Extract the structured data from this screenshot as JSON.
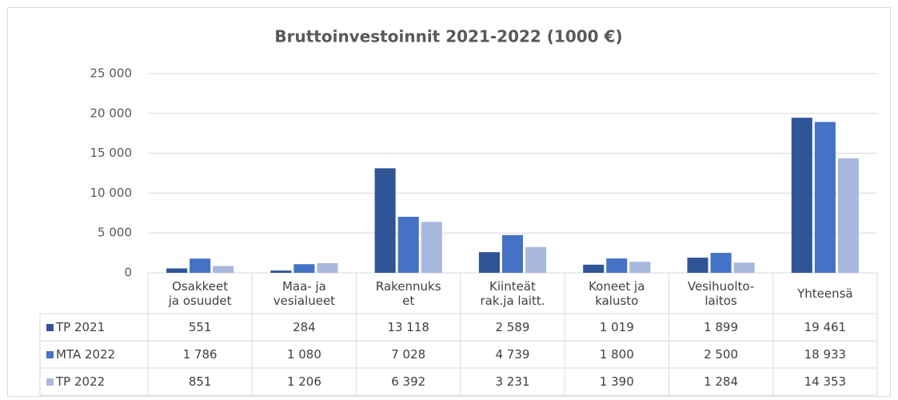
{
  "chart_data": {
    "type": "bar",
    "title": "Bruttoinvestoinnit 2021-2022 (1000 €)",
    "categories": [
      "Osakkeet\nja osuudet",
      "Maa- ja\nvesialueet",
      "Rakennuks\net",
      "Kiinteät\nrak.ja laitt.",
      "Koneet ja\nkalusto",
      "Vesihuolto-\nlaitos",
      "Yhteensä"
    ],
    "series": [
      {
        "name": "TP 2021",
        "color": "#2f5597",
        "values": [
          551,
          284,
          13118,
          2589,
          1019,
          1899,
          19461
        ],
        "value_labels": [
          "551",
          "284",
          "13 118",
          "2 589",
          "1 019",
          "1 899",
          "19 461"
        ]
      },
      {
        "name": "MTA 2022",
        "color": "#4472c4",
        "values": [
          1786,
          1080,
          7028,
          4739,
          1800,
          2500,
          18933
        ],
        "value_labels": [
          "1 786",
          "1 080",
          "7 028",
          "4 739",
          "1 800",
          "2 500",
          "18 933"
        ]
      },
      {
        "name": "TP 2022",
        "color": "#a9b8de",
        "values": [
          851,
          1206,
          6392,
          3231,
          1390,
          1284,
          14353
        ],
        "value_labels": [
          "851",
          "1 206",
          "6 392",
          "3 231",
          "1 390",
          "1 284",
          "14 353"
        ]
      }
    ],
    "ylim": [
      0,
      25000
    ],
    "yticks": [
      0,
      {
        "value": 5000,
        "label": "5 000"
      },
      {
        "value": 10000,
        "label": "10 000"
      },
      {
        "value": 15000,
        "label": "15 000"
      },
      {
        "value": 20000,
        "label": "20 000"
      },
      {
        "value": 25000,
        "label": "25 000"
      }
    ],
    "grid": true
  }
}
